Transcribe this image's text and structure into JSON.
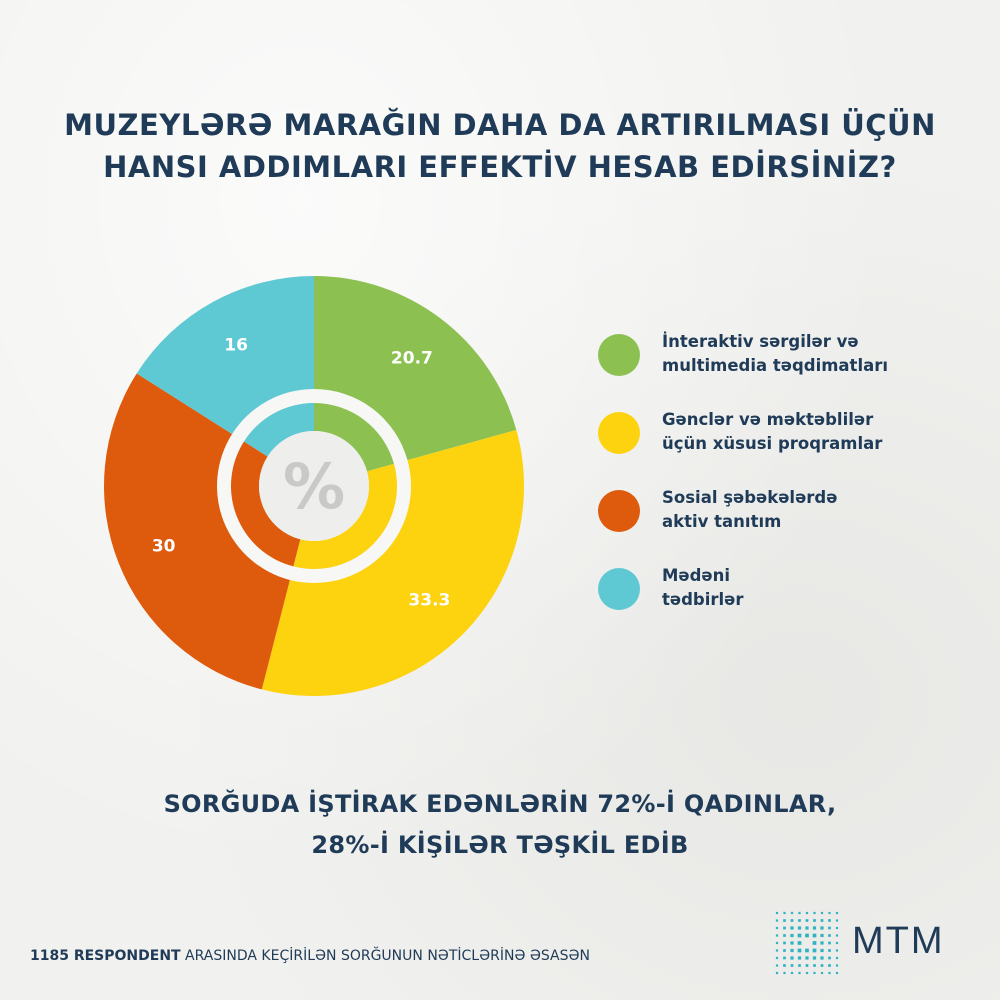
{
  "title": {
    "line1": "MUZEYLƏRƏ MARAĞIN DAHA DA ARTIRILMASI ÜÇÜN",
    "line2": "HANSI ADDIMLARI EFFEKTİV HESAB EDİRSİNİZ?"
  },
  "chart_data": {
    "type": "pie",
    "style": "donut",
    "center_symbol": "%",
    "categories": [
      "İnteraktiv sərgilər və multimedia təqdimatları",
      "Gənclər və məktəblilər üçün xüsusi proqramlar",
      "Sosial şəbəkələrdə aktiv tanıtım",
      "Mədəni tədbirlər"
    ],
    "values": [
      20.7,
      33.3,
      30,
      16
    ],
    "labels": [
      "20.7",
      "33.3",
      "30",
      "16"
    ],
    "colors": [
      "#8cc152",
      "#fdd20f",
      "#de5a0c",
      "#5ec8d3"
    ],
    "legend_position": "right"
  },
  "legend": [
    {
      "line1": "İnteraktiv sərgilər və",
      "line2": "multimedia təqdimatları",
      "color": "#8cc152"
    },
    {
      "line1": "Gənclər və məktəblilər",
      "line2": "üçün xüsusi proqramlar",
      "color": "#fdd20f"
    },
    {
      "line1": "Sosial şəbəkələrdə",
      "line2": "aktiv tanıtım",
      "color": "#de5a0c"
    },
    {
      "line1": "Mədəni",
      "line2": "tədbirlər",
      "color": "#5ec8d3"
    }
  ],
  "note": {
    "line1": "SORĞUDA İŞTİRAK EDƏNLƏRİN 72%-İ QADINLAR,",
    "line2": "28%-İ KİŞİLƏR TƏŞKİL EDİB"
  },
  "footer": {
    "bold": "1185 RESPONDENT",
    "rest": " ARASINDA KEÇİRİLƏN SORĞUNUN NƏTİCLƏRİNƏ ƏSASƏN"
  },
  "logo": {
    "text": "MTM",
    "color": "#2fb3c2"
  },
  "text_color": "#1f3b57"
}
